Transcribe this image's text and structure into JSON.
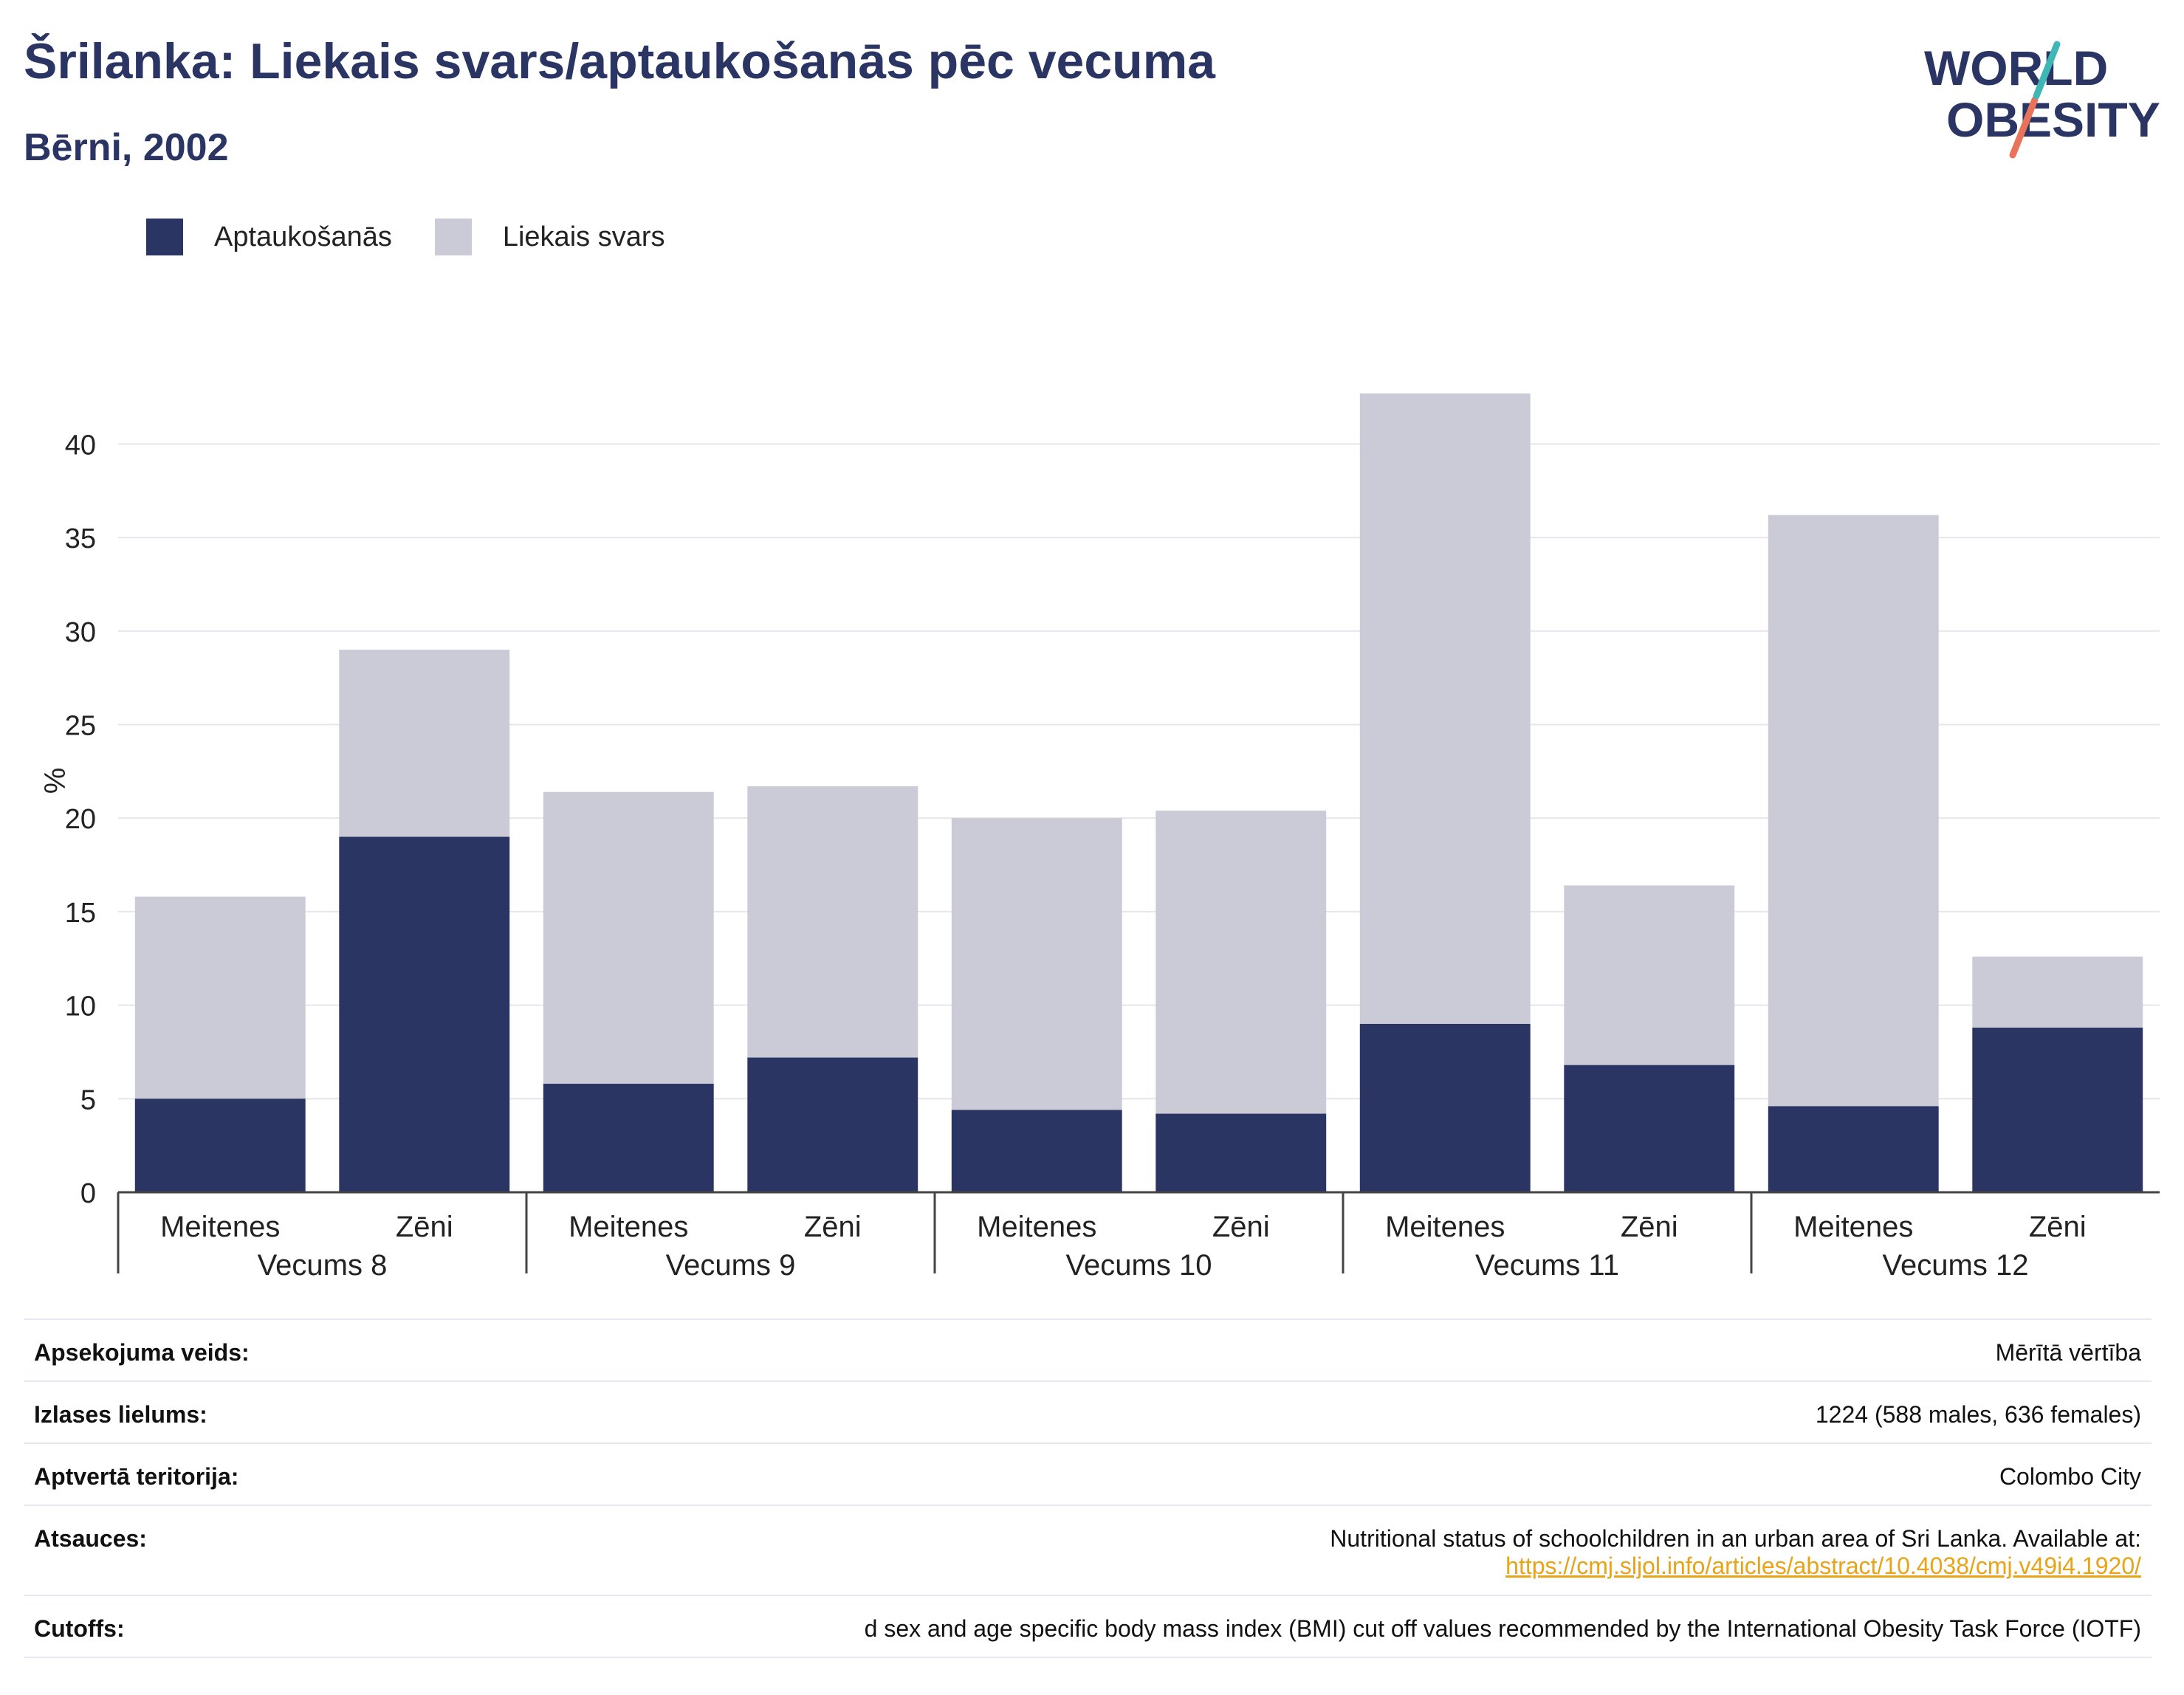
{
  "header": {
    "title": "Šrilanka: Liekais svars/aptaukošanās pēc vecuma",
    "subtitle": "Bērni, 2002"
  },
  "logo": {
    "line1": "WORLD",
    "line2": "OBESITY"
  },
  "colors": {
    "obesity": "#2b3563",
    "overweight": "#cacbd7",
    "grid": "#e6e6ec",
    "axis": "#444444",
    "link": "#e8a317"
  },
  "chart_data": {
    "type": "bar",
    "stacked": true,
    "ylabel": "%",
    "ylim": [
      0,
      44
    ],
    "yticks": [
      0,
      5,
      10,
      15,
      20,
      25,
      30,
      35,
      40
    ],
    "groups": [
      "Vecums 8",
      "Vecums 9",
      "Vecums 10",
      "Vecums 11",
      "Vecums 12"
    ],
    "categories": [
      "Meitenes",
      "Zēni",
      "Meitenes",
      "Zēni",
      "Meitenes",
      "Zēni",
      "Meitenes",
      "Zēni",
      "Meitenes",
      "Zēni"
    ],
    "series": [
      {
        "name": "Aptaukošanās",
        "values": [
          5.0,
          19.0,
          5.8,
          7.2,
          4.4,
          4.2,
          9.0,
          6.8,
          4.6,
          8.8
        ]
      },
      {
        "name": "Liekais svars",
        "values": [
          10.8,
          10.0,
          15.6,
          14.5,
          15.6,
          16.2,
          33.7,
          9.6,
          31.6,
          3.8
        ]
      }
    ],
    "legend": "top-left",
    "grid": true
  },
  "info": {
    "survey_type": {
      "label": "Apsekojuma veids:",
      "value": "Mērītā vērtība"
    },
    "sample_size": {
      "label": "Izlases lielums:",
      "value": "1224 (588 males, 636 females)"
    },
    "area": {
      "label": "Aptvertā teritorija:",
      "value": "Colombo City"
    },
    "references": {
      "label": "Atsauces:",
      "value": "Nutritional status of schoolchildren in an urban area of Sri Lanka. Available at:",
      "link": "https://cmj.sljol.info/articles/abstract/10.4038/cmj.v49i4.1920/"
    },
    "cutoffs": {
      "label": "Cutoffs:",
      "value": "d sex and age specific body mass index (BMI) cut off values recommended by the International Obesity Task Force (IOTF)"
    }
  }
}
